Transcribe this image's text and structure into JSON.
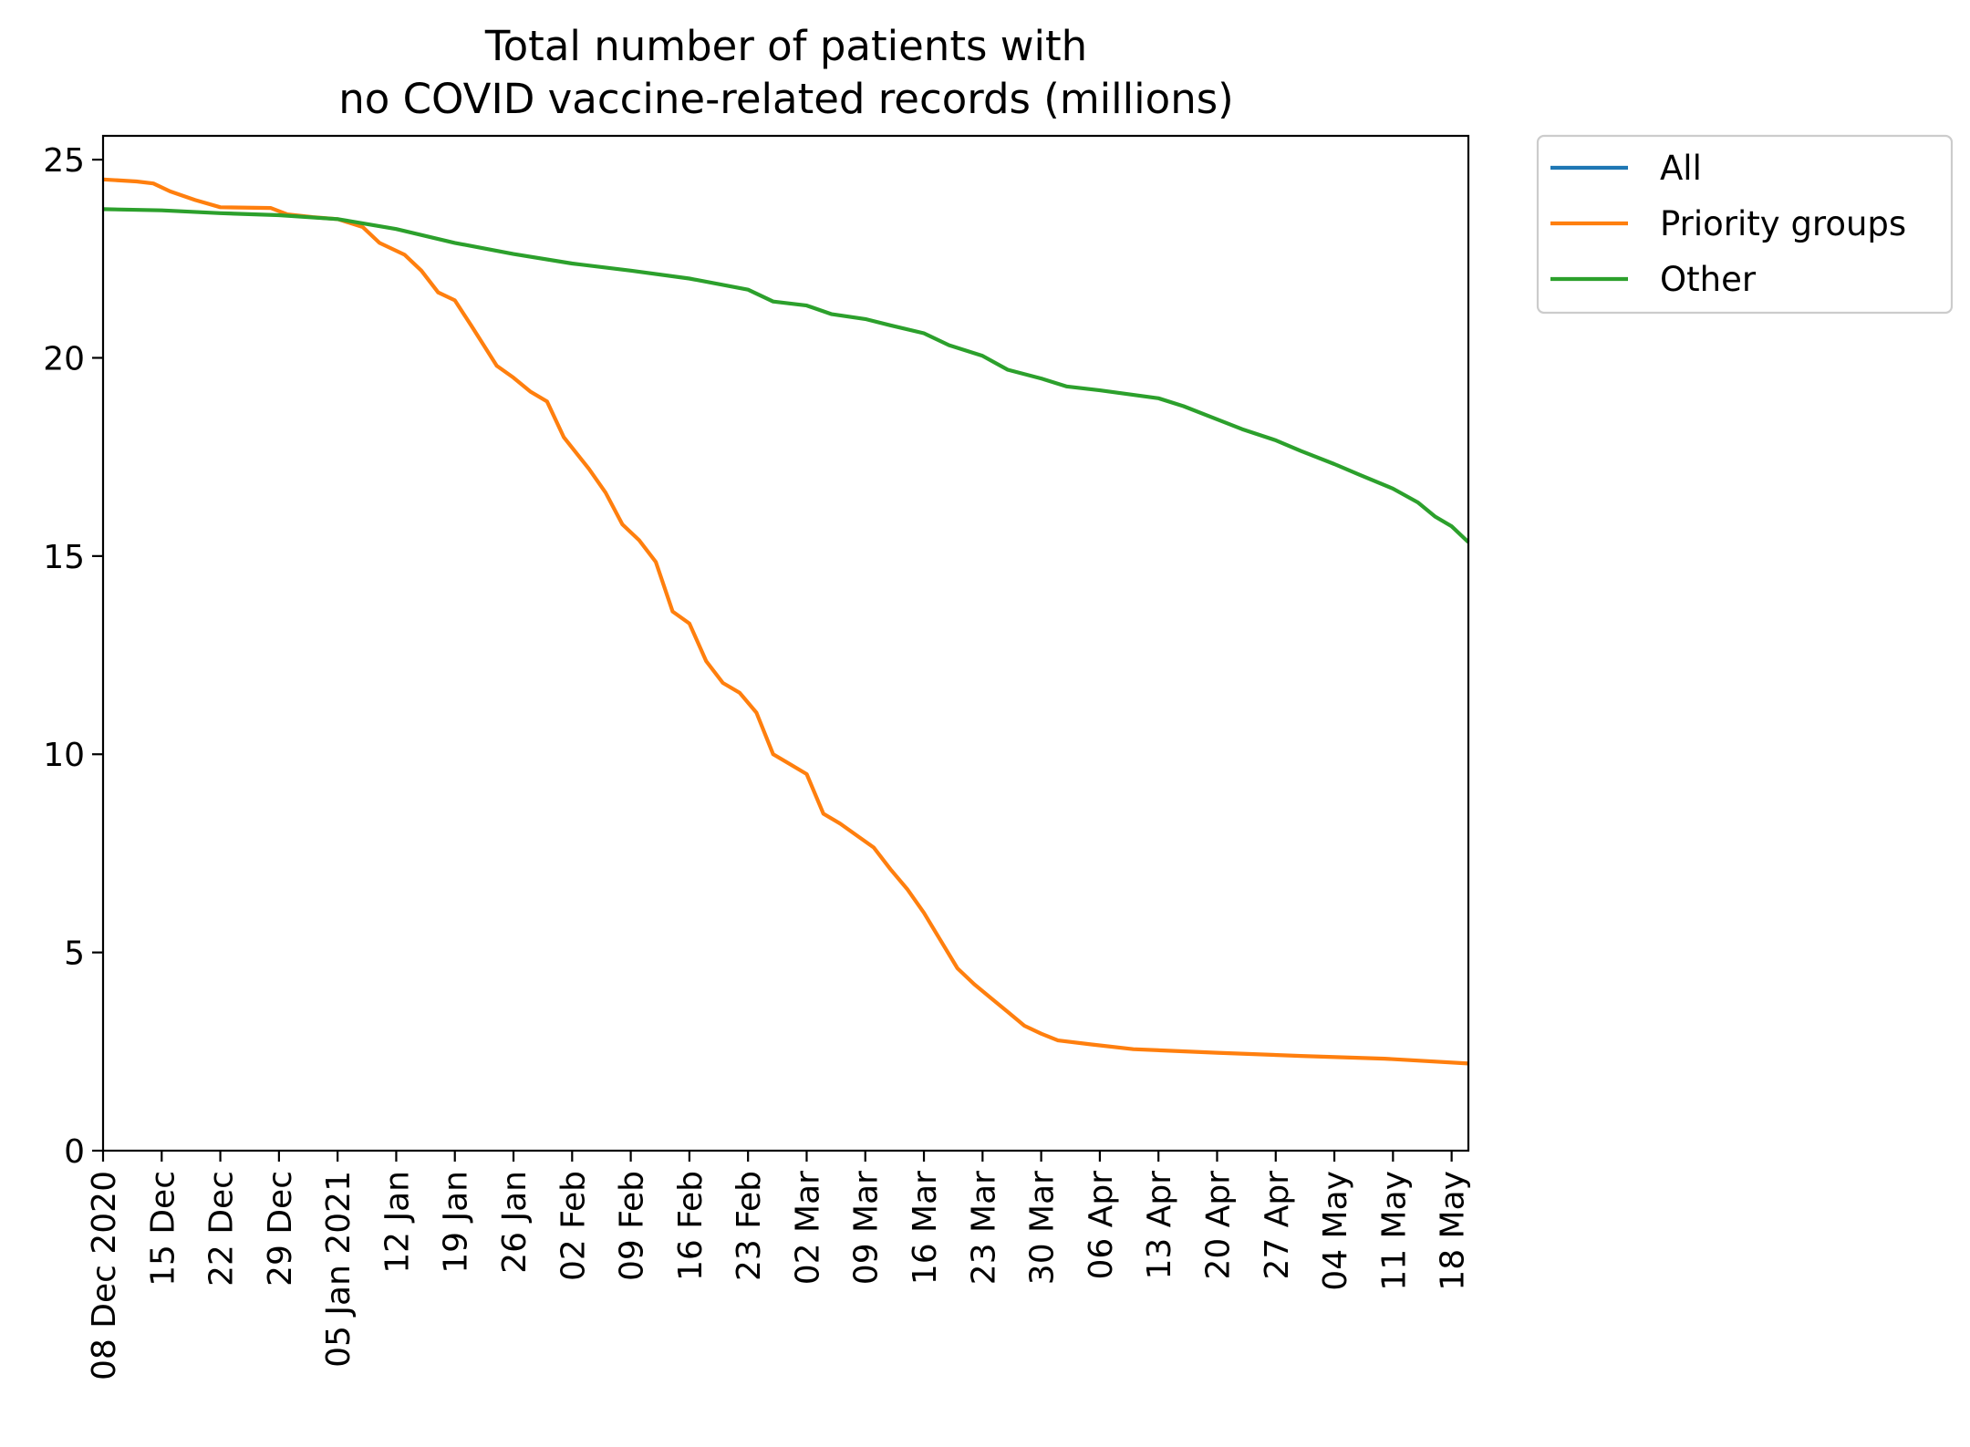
{
  "chart_data": {
    "type": "line",
    "title": [
      "Total number of patients with",
      "no COVID vaccine-related records (millions)"
    ],
    "xlabel": "",
    "ylabel": "",
    "x_tick_labels": [
      "08 Dec 2020",
      "15 Dec",
      "22 Dec",
      "29 Dec",
      "05 Jan 2021",
      "12 Jan",
      "19 Jan",
      "26 Jan",
      "02 Feb",
      "09 Feb",
      "16 Feb",
      "23 Feb",
      "02 Mar",
      "09 Mar",
      "16 Mar",
      "23 Mar",
      "30 Mar",
      "06 Apr",
      "13 Apr",
      "20 Apr",
      "27 Apr",
      "04 May",
      "11 May",
      "18 May"
    ],
    "x_tick_dates": [
      "2020-12-08",
      "2020-12-15",
      "2020-12-22",
      "2020-12-29",
      "2021-01-05",
      "2021-01-12",
      "2021-01-19",
      "2021-01-26",
      "2021-02-02",
      "2021-02-09",
      "2021-02-16",
      "2021-02-23",
      "2021-03-02",
      "2021-03-09",
      "2021-03-16",
      "2021-03-23",
      "2021-03-30",
      "2021-04-06",
      "2021-04-13",
      "2021-04-20",
      "2021-04-27",
      "2021-05-04",
      "2021-05-11",
      "2021-05-18"
    ],
    "xlim": [
      "2020-12-08",
      "2021-05-20"
    ],
    "y_ticks": [
      0,
      5,
      10,
      15,
      20,
      25
    ],
    "ylim": [
      0,
      25.6
    ],
    "grid": false,
    "legend_position": "outside-top-right",
    "series": [
      {
        "name": "All",
        "color": "#1f77b4",
        "points": []
      },
      {
        "name": "Priority groups",
        "color": "#ff7f0e",
        "points": [
          [
            "2020-12-08",
            24.5
          ],
          [
            "2020-12-12",
            24.45
          ],
          [
            "2020-12-14",
            24.4
          ],
          [
            "2020-12-16",
            24.2
          ],
          [
            "2020-12-19",
            23.98
          ],
          [
            "2020-12-22",
            23.8
          ],
          [
            "2020-12-28",
            23.78
          ],
          [
            "2020-12-30",
            23.62
          ],
          [
            "2021-01-02",
            23.55
          ],
          [
            "2021-01-05",
            23.5
          ],
          [
            "2021-01-08",
            23.3
          ],
          [
            "2021-01-10",
            22.9
          ],
          [
            "2021-01-13",
            22.6
          ],
          [
            "2021-01-15",
            22.2
          ],
          [
            "2021-01-17",
            21.65
          ],
          [
            "2021-01-19",
            21.45
          ],
          [
            "2021-01-21",
            20.8
          ],
          [
            "2021-01-24",
            19.8
          ],
          [
            "2021-01-26",
            19.5
          ],
          [
            "2021-01-28",
            19.15
          ],
          [
            "2021-01-30",
            18.9
          ],
          [
            "2021-02-01",
            18.0
          ],
          [
            "2021-02-04",
            17.2
          ],
          [
            "2021-02-06",
            16.6
          ],
          [
            "2021-02-08",
            15.8
          ],
          [
            "2021-02-10",
            15.4
          ],
          [
            "2021-02-12",
            14.85
          ],
          [
            "2021-02-14",
            13.6
          ],
          [
            "2021-02-16",
            13.3
          ],
          [
            "2021-02-18",
            12.35
          ],
          [
            "2021-02-20",
            11.8
          ],
          [
            "2021-02-22",
            11.55
          ],
          [
            "2021-02-24",
            11.05
          ],
          [
            "2021-02-26",
            10.0
          ],
          [
            "2021-02-28",
            9.75
          ],
          [
            "2021-03-02",
            9.5
          ],
          [
            "2021-03-04",
            8.5
          ],
          [
            "2021-03-06",
            8.25
          ],
          [
            "2021-03-08",
            7.95
          ],
          [
            "2021-03-10",
            7.65
          ],
          [
            "2021-03-12",
            7.1
          ],
          [
            "2021-03-14",
            6.6
          ],
          [
            "2021-03-16",
            6.0
          ],
          [
            "2021-03-18",
            5.3
          ],
          [
            "2021-03-20",
            4.6
          ],
          [
            "2021-03-22",
            4.2
          ],
          [
            "2021-03-24",
            3.85
          ],
          [
            "2021-03-26",
            3.5
          ],
          [
            "2021-03-28",
            3.15
          ],
          [
            "2021-03-30",
            2.95
          ],
          [
            "2021-04-01",
            2.78
          ],
          [
            "2021-04-05",
            2.68
          ],
          [
            "2021-04-10",
            2.56
          ],
          [
            "2021-04-20",
            2.47
          ],
          [
            "2021-04-30",
            2.39
          ],
          [
            "2021-05-10",
            2.32
          ],
          [
            "2021-05-20",
            2.2
          ]
        ]
      },
      {
        "name": "Other",
        "color": "#2ca02c",
        "points": [
          [
            "2020-12-08",
            23.75
          ],
          [
            "2020-12-15",
            23.72
          ],
          [
            "2020-12-22",
            23.65
          ],
          [
            "2020-12-29",
            23.6
          ],
          [
            "2021-01-05",
            23.5
          ],
          [
            "2021-01-12",
            23.25
          ],
          [
            "2021-01-19",
            22.9
          ],
          [
            "2021-01-26",
            22.62
          ],
          [
            "2021-02-02",
            22.38
          ],
          [
            "2021-02-09",
            22.2
          ],
          [
            "2021-02-16",
            22.0
          ],
          [
            "2021-02-23",
            21.72
          ],
          [
            "2021-02-26",
            21.42
          ],
          [
            "2021-03-02",
            21.32
          ],
          [
            "2021-03-05",
            21.1
          ],
          [
            "2021-03-09",
            20.98
          ],
          [
            "2021-03-12",
            20.82
          ],
          [
            "2021-03-16",
            20.62
          ],
          [
            "2021-03-19",
            20.32
          ],
          [
            "2021-03-23",
            20.05
          ],
          [
            "2021-03-26",
            19.7
          ],
          [
            "2021-03-30",
            19.48
          ],
          [
            "2021-04-02",
            19.28
          ],
          [
            "2021-04-06",
            19.18
          ],
          [
            "2021-04-13",
            18.98
          ],
          [
            "2021-04-16",
            18.78
          ],
          [
            "2021-04-20",
            18.45
          ],
          [
            "2021-04-23",
            18.2
          ],
          [
            "2021-04-27",
            17.92
          ],
          [
            "2021-04-30",
            17.65
          ],
          [
            "2021-05-04",
            17.32
          ],
          [
            "2021-05-07",
            17.05
          ],
          [
            "2021-05-11",
            16.7
          ],
          [
            "2021-05-14",
            16.35
          ],
          [
            "2021-05-16",
            16.0
          ],
          [
            "2021-05-18",
            15.75
          ],
          [
            "2021-05-20",
            15.35
          ]
        ]
      }
    ]
  }
}
